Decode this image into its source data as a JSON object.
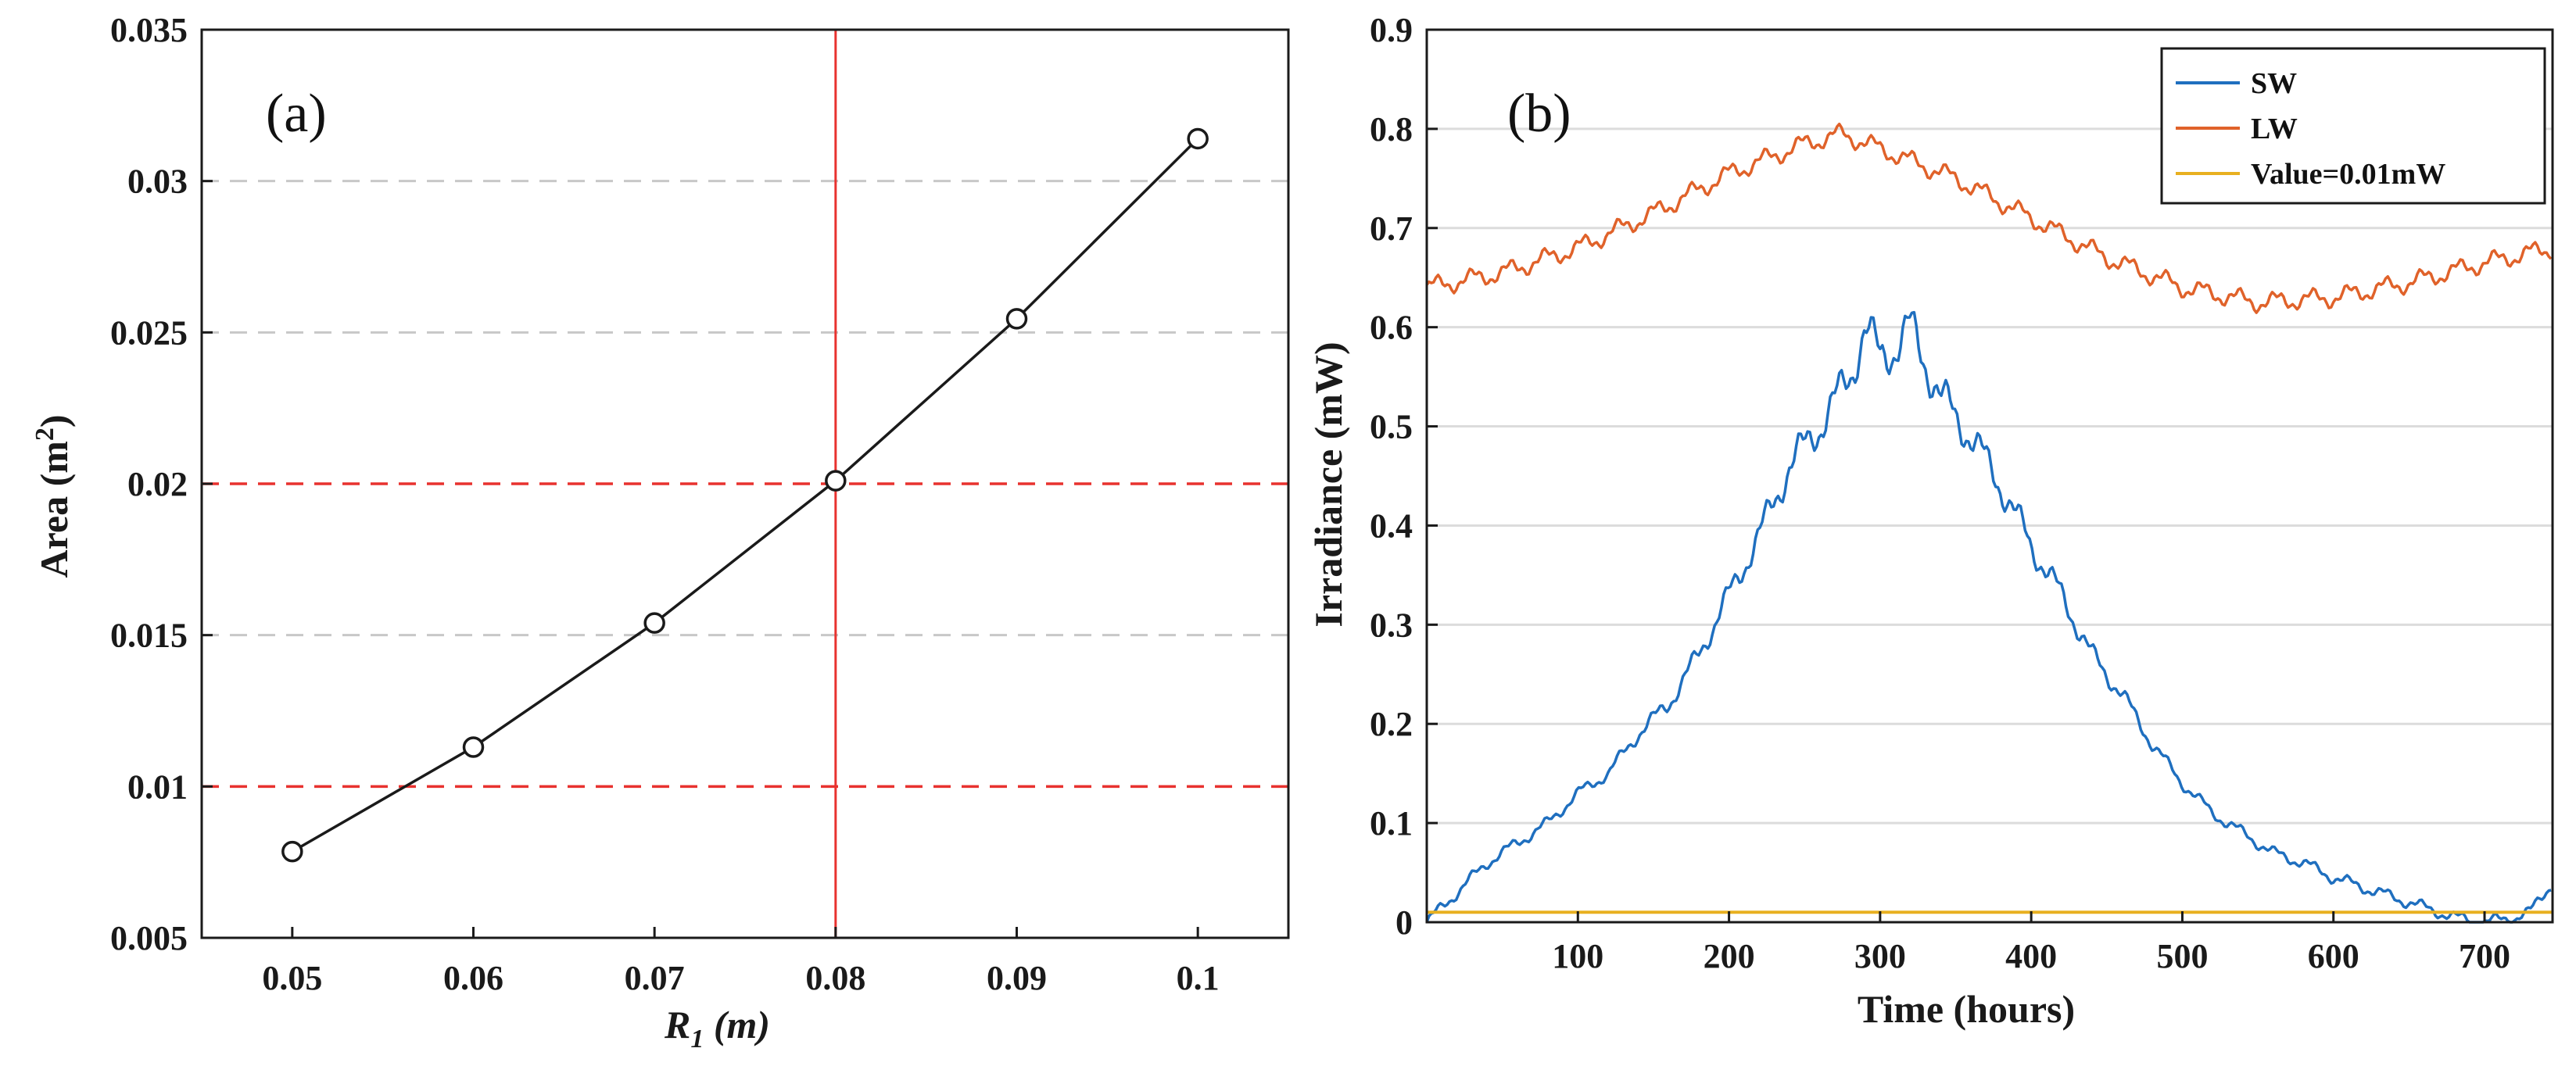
{
  "chart_data": [
    {
      "panel_label": "(a)",
      "type": "line",
      "xlabel_main": "R",
      "xlabel_sub": "1",
      "xlabel_unit": " (m)",
      "ylabel_main": "Area (m",
      "ylabel_sup": "2",
      "ylabel_end": ")",
      "xlim": [
        0.045,
        0.105
      ],
      "ylim": [
        0.005,
        0.035
      ],
      "xticks": [
        0.05,
        0.06,
        0.07,
        0.08,
        0.09,
        0.1
      ],
      "xtick_labels": [
        "0.05",
        "0.06",
        "0.07",
        "0.08",
        "0.09",
        "0.1"
      ],
      "yticks": [
        0.005,
        0.01,
        0.015,
        0.02,
        0.025,
        0.03,
        0.035
      ],
      "ytick_labels": [
        "0.005",
        "0.01",
        "0.015",
        "0.02",
        "0.025",
        "0.03",
        "0.035"
      ],
      "grid": "horizontal dashed gray",
      "series": [
        {
          "name": "Area",
          "x": [
            0.05,
            0.06,
            0.07,
            0.08,
            0.09,
            0.1
          ],
          "y": [
            0.00785,
            0.0113,
            0.0154,
            0.0201,
            0.02545,
            0.0314
          ],
          "color": "#1a1a1a",
          "marker": "circle"
        }
      ],
      "reference_lines": [
        {
          "orientation": "horizontal",
          "value": 0.02,
          "style": "dashed",
          "color": "#e8322f"
        },
        {
          "orientation": "horizontal",
          "value": 0.01,
          "style": "dashed",
          "color": "#e8322f"
        },
        {
          "orientation": "vertical",
          "value": 0.08,
          "style": "solid",
          "color": "#e8322f"
        }
      ]
    },
    {
      "panel_label": "(b)",
      "type": "line",
      "xlabel": "Time (hours)",
      "ylabel": "Irradiance (mW)",
      "xlim": [
        0,
        745
      ],
      "ylim": [
        0,
        0.9
      ],
      "xticks": [
        100,
        200,
        300,
        400,
        500,
        600,
        700
      ],
      "xtick_labels": [
        "100",
        "200",
        "300",
        "400",
        "500",
        "600",
        "700"
      ],
      "yticks": [
        0,
        0.1,
        0.2,
        0.3,
        0.4,
        0.5,
        0.6,
        0.7,
        0.8,
        0.9
      ],
      "ytick_labels": [
        "0",
        "0.1",
        "0.2",
        "0.3",
        "0.4",
        "0.5",
        "0.6",
        "0.7",
        "0.8",
        "0.9"
      ],
      "grid": "horizontal solid light gray",
      "legend_position": "top-right",
      "series": [
        {
          "name": "SW",
          "color": "#1f6fbf",
          "x": [
            0,
            20,
            40,
            60,
            80,
            100,
            120,
            140,
            160,
            180,
            200,
            220,
            240,
            260,
            280,
            290,
            300,
            310,
            320,
            340,
            360,
            380,
            400,
            420,
            440,
            460,
            480,
            500,
            520,
            540,
            560,
            580,
            600,
            620,
            640,
            660,
            680,
            700,
            720,
            730,
            740,
            745
          ],
          "y": [
            0.0,
            0.03,
            0.06,
            0.08,
            0.1,
            0.13,
            0.15,
            0.19,
            0.22,
            0.27,
            0.33,
            0.39,
            0.46,
            0.5,
            0.55,
            0.6,
            0.57,
            0.58,
            0.6,
            0.53,
            0.49,
            0.44,
            0.38,
            0.33,
            0.27,
            0.23,
            0.18,
            0.14,
            0.11,
            0.09,
            0.07,
            0.06,
            0.045,
            0.035,
            0.025,
            0.015,
            0.005,
            0.0,
            0.005,
            0.01,
            0.03,
            0.04
          ]
        },
        {
          "name": "LW",
          "color": "#e0622a",
          "x": [
            0,
            50,
            100,
            150,
            200,
            250,
            275,
            300,
            350,
            400,
            450,
            500,
            550,
            600,
            650,
            700,
            745
          ],
          "y": [
            0.64,
            0.655,
            0.68,
            0.715,
            0.755,
            0.785,
            0.795,
            0.78,
            0.75,
            0.71,
            0.67,
            0.64,
            0.625,
            0.63,
            0.645,
            0.665,
            0.68
          ]
        },
        {
          "name": "Value=0.01mW",
          "color": "#e8b020",
          "x": [
            0,
            745
          ],
          "y": [
            0.01,
            0.01
          ]
        }
      ]
    }
  ]
}
